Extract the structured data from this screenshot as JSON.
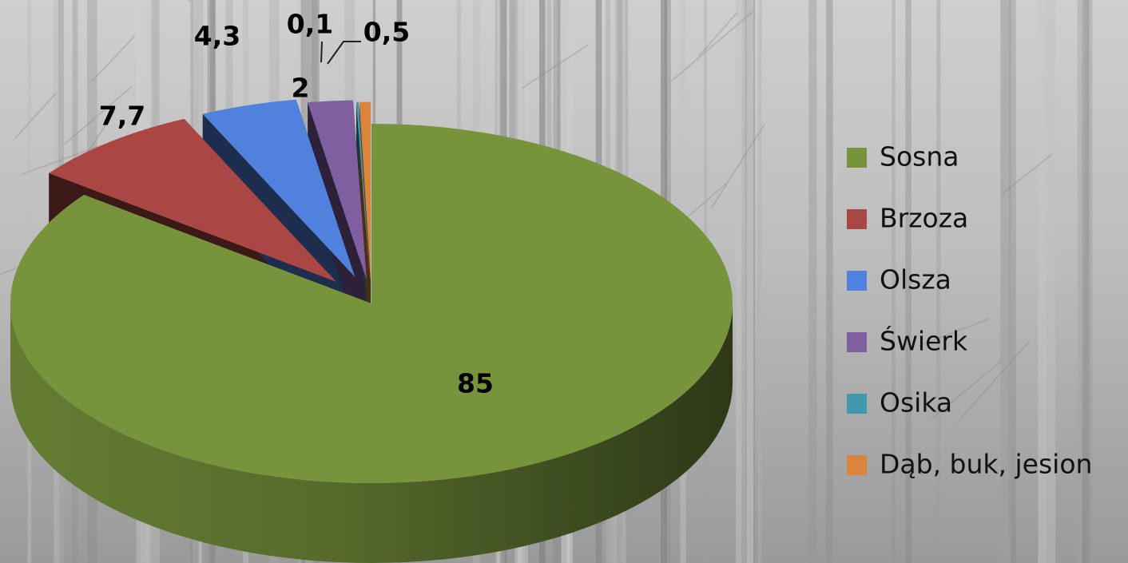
{
  "chart_data": {
    "type": "pie",
    "style": "3d-exploded",
    "categories": [
      "Sosna",
      "Brzoza",
      "Olsza",
      "Świerk",
      "Osika",
      "Dąb, buk, jesion"
    ],
    "values": [
      85,
      7.7,
      4.3,
      2,
      0.1,
      0.5
    ],
    "data_labels": [
      "85",
      "7,7",
      "4,3",
      "2",
      "0,1",
      "0,5"
    ],
    "colors": [
      "#77933C",
      "#AA4643",
      "#4F81DD",
      "#7F5FA0",
      "#4198AF",
      "#DB843D"
    ],
    "legend_position": "right",
    "background": "burnt-forest-photo"
  }
}
